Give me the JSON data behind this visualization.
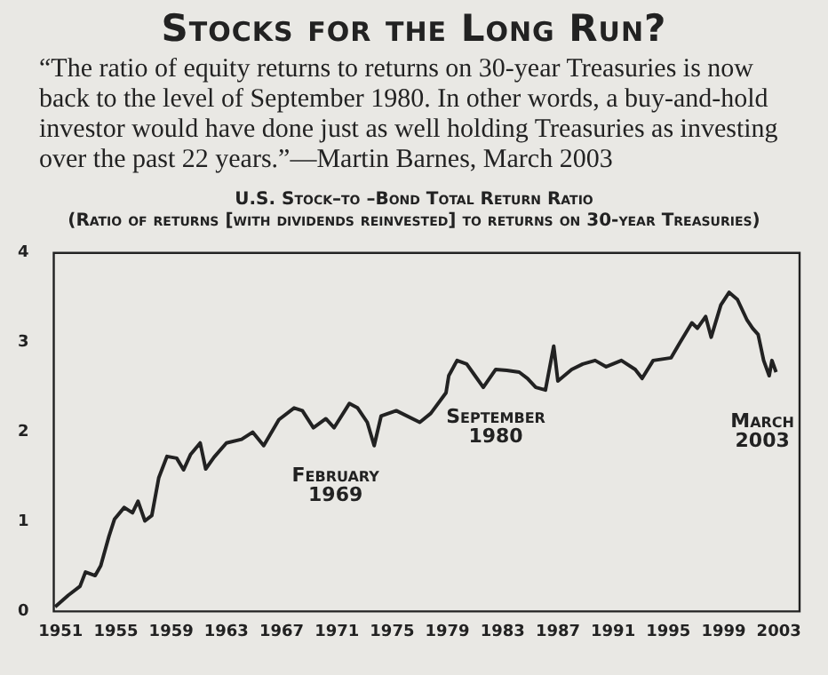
{
  "chart_data": {
    "type": "line",
    "title": "Stocks for the Long Run?",
    "subtitle": "“The ratio of equity returns to returns on 30-year Treasuries is now back to the level of September 1980. In other words, a buy-and-hold investor would have done just as well holding Treasuries as investing over the past 22 years.”—Martin Barnes, March 2003",
    "annotations": [
      "U.S. Stock–to –Bond Total Return Ratio",
      "(Ratio of returns [with dividends reinvested] to returns on 30-year Treasuries)",
      {
        "text": "February 1969",
        "x": 1969.1,
        "y": 2.05
      },
      {
        "text": "September 1980",
        "x": 1980.7,
        "y": 2.7
      },
      {
        "text": "March 2003",
        "x": 2003.2,
        "y": 2.65
      }
    ],
    "series": [
      {
        "color": "#222222",
        "x": [
          1950.6,
          1951.55,
          1952.4,
          1952.8,
          1953.5,
          1953.9,
          1954.5,
          1954.9,
          1955.6,
          1956.2,
          1956.6,
          1957.1,
          1957.6,
          1958.1,
          1958.7,
          1959.4,
          1959.9,
          1960.4,
          1961.1,
          1961.5,
          1962.1,
          1963.0,
          1964.1,
          1964.9,
          1965.7,
          1966.8,
          1967.9,
          1968.5,
          1969.3,
          1970.2,
          1970.8,
          1971.9,
          1972.5,
          1973.2,
          1973.7,
          1974.2,
          1975.3,
          1977.0,
          1977.8,
          1978.9,
          1979.1,
          1979.7,
          1980.4,
          1981.0,
          1981.6,
          1982.5,
          1983.3,
          1984.2,
          1984.8,
          1985.4,
          1986.1,
          1986.7,
          1987.0,
          1988.0,
          1988.8,
          1989.7,
          1990.5,
          1991.6,
          1992.6,
          1993.1,
          1993.9,
          1995.2,
          1995.8,
          1996.7,
          1997.1,
          1997.7,
          1998.1,
          1998.8,
          1999.4,
          2000.0,
          2000.7,
          2001.1,
          2001.5,
          2001.9,
          2002.3,
          2002.5,
          2002.8
        ],
        "values": [
          0.05,
          0.18,
          0.28,
          0.44,
          0.4,
          0.51,
          0.84,
          1.03,
          1.16,
          1.1,
          1.23,
          1.01,
          1.07,
          1.49,
          1.73,
          1.71,
          1.58,
          1.75,
          1.88,
          1.59,
          1.72,
          1.88,
          1.92,
          2.0,
          1.85,
          2.14,
          2.27,
          2.24,
          2.05,
          2.15,
          2.05,
          2.32,
          2.27,
          2.11,
          1.85,
          2.18,
          2.24,
          2.11,
          2.21,
          2.44,
          2.63,
          2.8,
          2.76,
          2.63,
          2.5,
          2.7,
          2.69,
          2.67,
          2.6,
          2.5,
          2.47,
          2.96,
          2.57,
          2.7,
          2.76,
          2.8,
          2.73,
          2.8,
          2.7,
          2.6,
          2.8,
          2.83,
          2.99,
          3.22,
          3.16,
          3.29,
          3.06,
          3.42,
          3.56,
          3.48,
          3.25,
          3.16,
          3.09,
          2.8,
          2.63,
          2.8,
          2.67
        ]
      }
    ],
    "xlim": [
      1950.5,
      2004.5
    ],
    "xticks": [
      1951,
      1955,
      1959,
      1963,
      1967,
      1971,
      1975,
      1979,
      1983,
      1987,
      1991,
      1995,
      1999,
      2003
    ],
    "ylim": [
      0,
      4
    ],
    "yticks": [
      0,
      1,
      2,
      3,
      4
    ]
  }
}
